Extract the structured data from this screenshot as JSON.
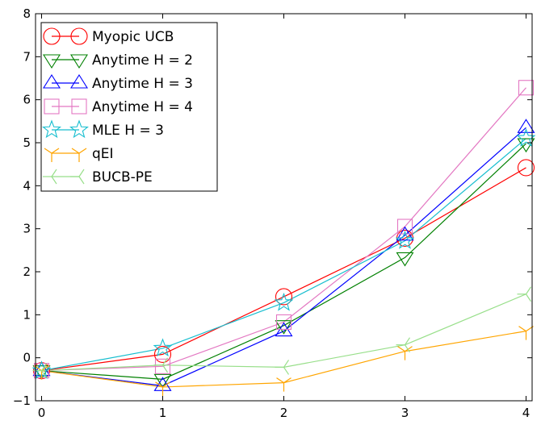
{
  "chart_data": {
    "type": "line",
    "title": "",
    "xlabel": "",
    "ylabel": "",
    "x": [
      0,
      1,
      2,
      3,
      4
    ],
    "xlim": [
      -0.05,
      4.05
    ],
    "ylim": [
      -1,
      8
    ],
    "xticks": [
      0,
      1,
      2,
      3,
      4
    ],
    "yticks": [
      -1,
      0,
      1,
      2,
      3,
      4,
      5,
      6,
      7,
      8
    ],
    "grid": false,
    "legend_position": "top-left",
    "series": [
      {
        "name": "Myopic UCB",
        "color": "#ff0000",
        "marker": "circle",
        "values": [
          -0.3,
          0.08,
          1.42,
          2.78,
          4.42
        ]
      },
      {
        "name": "Anytime H = 2",
        "color": "#008000",
        "marker": "triangle-down",
        "values": [
          -0.3,
          -0.5,
          0.75,
          2.33,
          4.98
        ]
      },
      {
        "name": "Anytime H = 3",
        "color": "#0000ff",
        "marker": "triangle-up",
        "values": [
          -0.3,
          -0.65,
          0.62,
          2.85,
          5.35
        ]
      },
      {
        "name": "Anytime H = 4",
        "color": "#e377c2",
        "marker": "square",
        "values": [
          -0.3,
          -0.2,
          0.83,
          3.05,
          6.28
        ]
      },
      {
        "name": "MLE H = 3",
        "color": "#17becf",
        "marker": "star",
        "values": [
          -0.3,
          0.22,
          1.28,
          2.72,
          5.1
        ]
      },
      {
        "name": "qEI",
        "color": "#ffa500",
        "marker": "tri-down",
        "values": [
          -0.3,
          -0.68,
          -0.58,
          0.15,
          0.62
        ]
      },
      {
        "name": "BUCB-PE",
        "color": "#98df8a",
        "marker": "tri-left",
        "values": [
          -0.3,
          -0.17,
          -0.22,
          0.3,
          1.48
        ]
      }
    ]
  }
}
